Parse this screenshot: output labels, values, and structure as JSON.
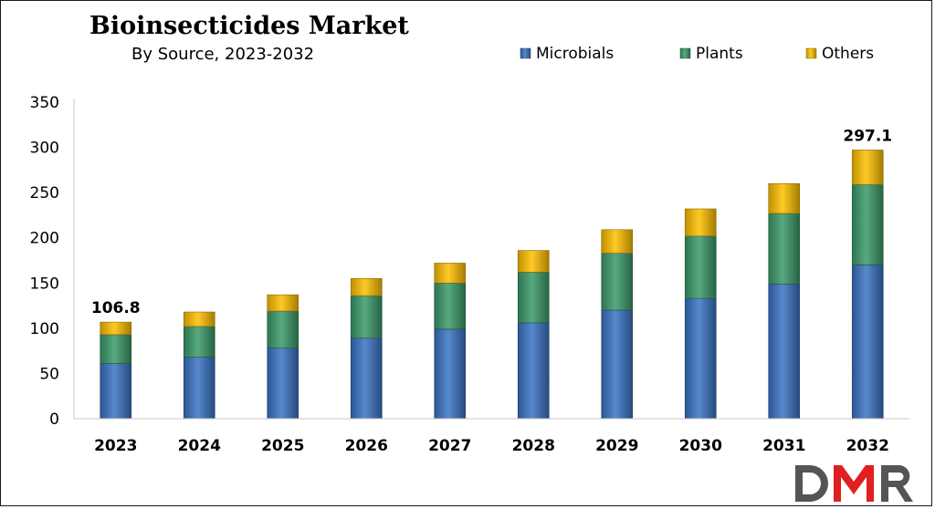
{
  "chart_data": {
    "type": "bar",
    "stacked": true,
    "title": "Bioinsecticides Market",
    "subtitle": "By Source, 2023-2032",
    "xlabel": "",
    "ylabel": "",
    "ylim": [
      0,
      350
    ],
    "yticks": [
      0,
      50,
      100,
      150,
      200,
      250,
      300,
      350
    ],
    "grid": false,
    "legend_position": "top-right",
    "categories": [
      "2023",
      "2024",
      "2025",
      "2026",
      "2027",
      "2028",
      "2029",
      "2030",
      "2031",
      "2032"
    ],
    "series": [
      {
        "name": "Microbials",
        "color": "#3b73c4",
        "values": [
          61,
          68,
          78,
          89,
          99,
          106,
          120,
          133,
          149,
          170
        ]
      },
      {
        "name": "Plants",
        "color": "#3a9a6a",
        "values": [
          32,
          34,
          41,
          47,
          51,
          56,
          63,
          69,
          78,
          89
        ]
      },
      {
        "name": "Others",
        "color": "#ffc000",
        "values": [
          13.8,
          16,
          18,
          19,
          22,
          24,
          26,
          30,
          33,
          38.1
        ]
      }
    ],
    "data_labels": [
      {
        "category": "2023",
        "text": "106.8"
      },
      {
        "category": "2032",
        "text": "297.1"
      }
    ]
  },
  "logo": {
    "text": "DMR",
    "colors": [
      "#555555",
      "#e02020",
      "#555555"
    ]
  }
}
